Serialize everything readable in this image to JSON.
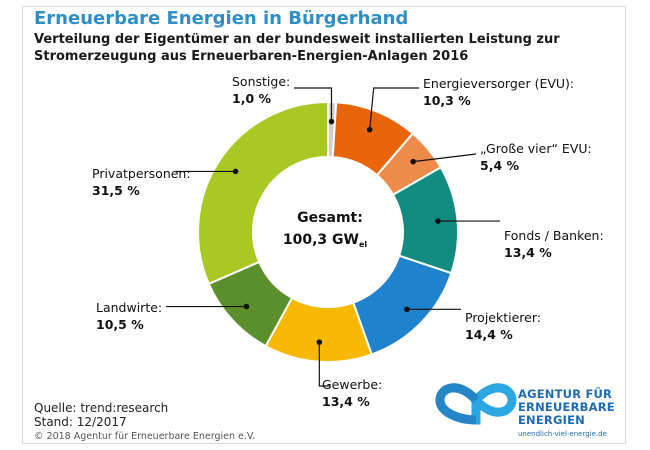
{
  "title": "Erneuerbare Energien in Bürgerhand",
  "subtitle_line1": "Verteilung der Eigentümer an der bundesweit installierten Leistung zur",
  "subtitle_line2": "Stromerzeugung aus Erneuerbaren-Energien-Anlagen 2016",
  "source_line1": "Quelle: trend:research",
  "source_line2": "Stand: 12/2017",
  "copyright": "© 2018 Agentur für Erneuerbare Energien e.V.",
  "logo": {
    "line1": "AGENTUR FÜR",
    "line2": "ERNEUERBARE",
    "line3": "ENERGIEN",
    "url": "unendlich-viel-energie.de"
  },
  "chart_data": {
    "type": "pie",
    "variant": "donut",
    "title": "Erneuerbare Energien in Bürgerhand",
    "center_label": "Gesamt:",
    "center_value": "100,3 GW",
    "center_unit_sub": "el",
    "total": 100.3,
    "unit": "GW_el",
    "slices": [
      {
        "name": "Sonstige:",
        "value": 1.0,
        "label": "1,0 %",
        "color": "#cfcfcf"
      },
      {
        "name": "Energieversorger (EVU):",
        "value": 10.3,
        "label": "10,3 %",
        "color": "#e8650a"
      },
      {
        "name": "„Große vier“ EVU:",
        "value": 5.4,
        "label": "5,4 %",
        "color": "#ef8b4a"
      },
      {
        "name": "Fonds / Banken:",
        "value": 13.4,
        "label": "13,4 %",
        "color": "#128b80"
      },
      {
        "name": "Projektierer:",
        "value": 14.4,
        "label": "14,4 %",
        "color": "#1f82cc"
      },
      {
        "name": "Gewerbe:",
        "value": 13.4,
        "label": "13,4 %",
        "color": "#f6b800"
      },
      {
        "name": "Landwirte:",
        "value": 10.5,
        "label": "10,5 %",
        "color": "#5a8f2c"
      },
      {
        "name": "Privatpersonen:",
        "value": 31.5,
        "label": "31,5 %",
        "color": "#a9c824"
      }
    ]
  }
}
